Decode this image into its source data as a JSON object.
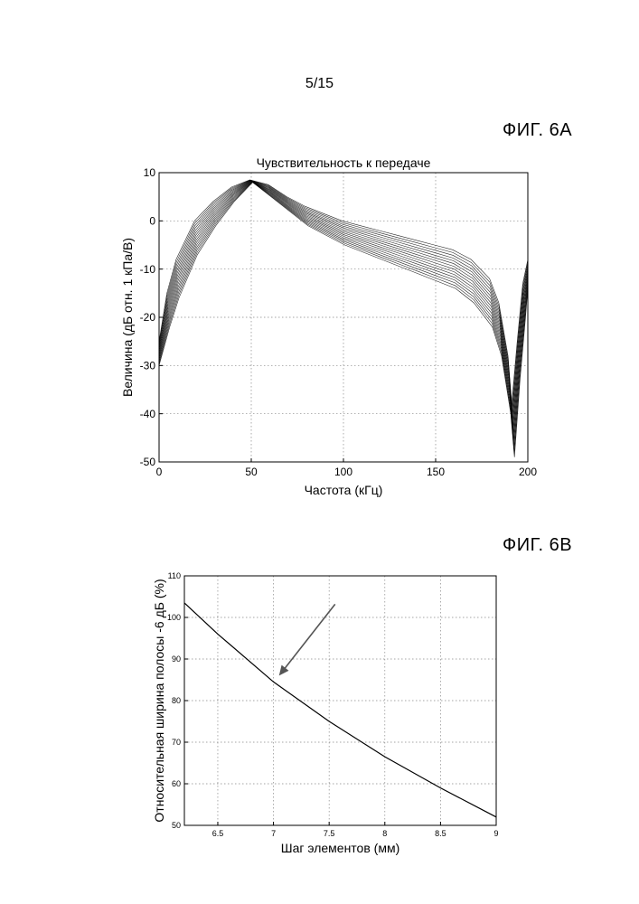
{
  "page_number": "5/15",
  "figures": {
    "fig6a_label": "ФИГ. 6A",
    "fig6b_label": "ФИГ. 6B"
  },
  "chart_data": [
    {
      "type": "line",
      "title": "Чувствительность к передаче",
      "xlabel": "Частота (кГц)",
      "ylabel": "Величина (дБ отн. 1 кПа/В)",
      "xlim": [
        0,
        200
      ],
      "ylim": [
        -50,
        10
      ],
      "xticks": [
        0,
        50,
        100,
        150,
        200
      ],
      "yticks": [
        -50,
        -40,
        -30,
        -20,
        -10,
        0,
        10
      ],
      "grid": true,
      "series_count": 15,
      "color": "#000000",
      "envelope": {
        "x": [
          0,
          5,
          10,
          20,
          30,
          40,
          50,
          60,
          70,
          80,
          90,
          100,
          110,
          120,
          130,
          140,
          150,
          160,
          170,
          180,
          185,
          190,
          192,
          195,
          198,
          200
        ],
        "y_upper": [
          -25,
          -15,
          -8,
          0,
          4,
          7,
          8.5,
          7.5,
          5,
          3,
          1.5,
          0,
          -1,
          -2,
          -3,
          -4,
          -5,
          -6,
          -8,
          -12,
          -17,
          -28,
          -38,
          -25,
          -13,
          -8
        ],
        "y_lower": [
          -30,
          -22,
          -16,
          -7,
          -1,
          4,
          8,
          5,
          2,
          -1,
          -3,
          -5,
          -6.5,
          -8,
          -9.5,
          -11,
          -12.5,
          -14,
          -17,
          -22,
          -28,
          -40,
          -49,
          -33,
          -20,
          -14
        ]
      }
    },
    {
      "type": "line",
      "title": "",
      "xlabel": "Шаг элементов (мм)",
      "ylabel": "Относительная ширина полосы -6 дБ (%)",
      "xlim": [
        6.2,
        9
      ],
      "ylim": [
        50,
        110
      ],
      "xtick_values": [
        6.5,
        7,
        7.5,
        8,
        8.5,
        9
      ],
      "xtick_labels": [
        "6.5",
        "7",
        "7.5",
        "8",
        "8.5",
        "9"
      ],
      "yticks": [
        50,
        60,
        70,
        80,
        90,
        100,
        110
      ],
      "grid": true,
      "series": [
        {
          "x": [
            6.2,
            6.5,
            7.0,
            7.5,
            8.0,
            8.5,
            9.0
          ],
          "y": [
            103.5,
            96,
            84.5,
            75,
            66.5,
            59,
            52
          ]
        }
      ],
      "annotation": {
        "type": "arrow",
        "points_to": [
          7.05,
          86
        ]
      }
    }
  ]
}
